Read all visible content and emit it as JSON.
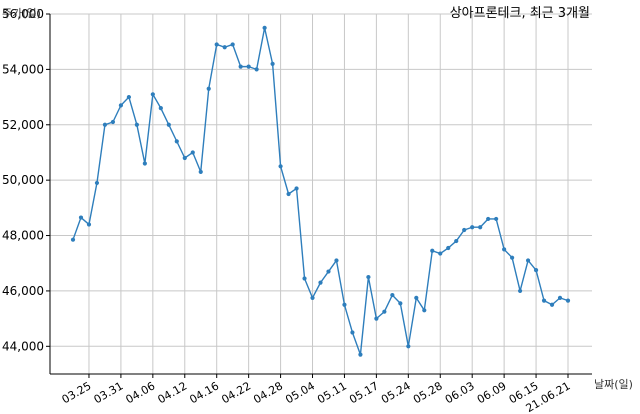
{
  "chart_data": {
    "type": "line",
    "title": "상아프론테크, 최근 3개월",
    "ylabel": "주가(일)",
    "xlabel": "날짜(일)",
    "ylim": [
      43000,
      56000
    ],
    "yticks": [
      44000,
      46000,
      48000,
      50000,
      52000,
      54000,
      56000
    ],
    "ytick_labels": [
      "44,000",
      "46,000",
      "48,000",
      "50,000",
      "52,000",
      "54,000",
      "56,000"
    ],
    "grid": true,
    "xtick_labels": [
      "03.25",
      "03.31",
      "04.06",
      "04.12",
      "04.16",
      "04.22",
      "04.28",
      "05.04",
      "05.11",
      "05.17",
      "05.24",
      "05.28",
      "06.03",
      "06.09",
      "06.15",
      "21.06.21"
    ],
    "xtick_first_index": 2,
    "xtick_step": 4,
    "series": [
      {
        "color": "#2e7ebc",
        "values": [
          47850,
          48650,
          48400,
          49900,
          52000,
          52100,
          52700,
          53000,
          52000,
          50600,
          53100,
          52600,
          52000,
          51400,
          50800,
          51000,
          50300,
          53300,
          54900,
          54800,
          54900,
          54100,
          54100,
          54000,
          55500,
          54200,
          50500,
          49500,
          49700,
          46450,
          45750,
          46300,
          46700,
          47100,
          45500,
          44500,
          43700,
          46500,
          45000,
          45250,
          45850,
          45550,
          44000,
          45750,
          45300,
          47450,
          47350,
          47550,
          47800,
          48200,
          48300,
          48300,
          48600,
          48600,
          47500,
          47200,
          46000,
          47100,
          46750,
          45650,
          45500,
          45750,
          45650
        ]
      }
    ]
  }
}
